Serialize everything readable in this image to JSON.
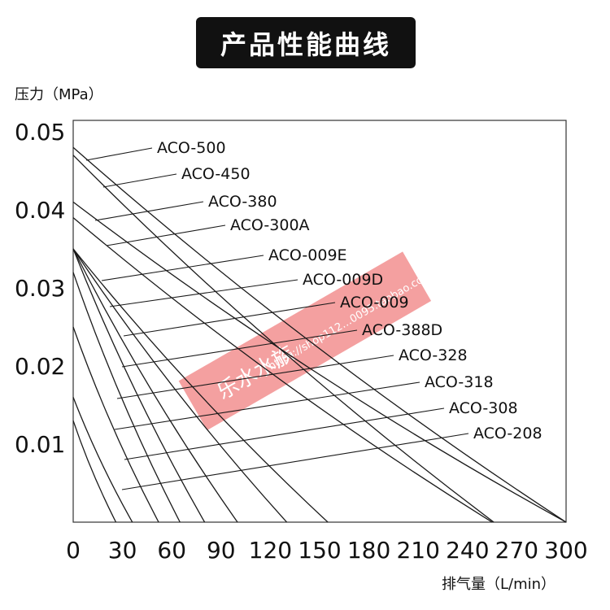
{
  "chart_data": {
    "type": "line",
    "title": "产品性能曲线",
    "ylabel": "压力（MPa）",
    "xlabel": "排气量（L/min）",
    "xlim": [
      0,
      300
    ],
    "ylim": [
      0,
      0.05
    ],
    "x_ticks": [
      "0",
      "30",
      "60",
      "90",
      "120",
      "150",
      "180",
      "210",
      "240",
      "270",
      "300"
    ],
    "y_ticks": [
      "0.01",
      "0.02",
      "0.03",
      "0.04",
      "0.05"
    ],
    "grid": false,
    "series": [
      {
        "name": "ACO-500",
        "points": [
          [
            0,
            0.048
          ],
          [
            300,
            0
          ]
        ]
      },
      {
        "name": "ACO-450",
        "points": [
          [
            0,
            0.047
          ],
          [
            256,
            0
          ]
        ]
      },
      {
        "name": "ACO-380",
        "points": [
          [
            0,
            0.041
          ],
          [
            300,
            0
          ]
        ]
      },
      {
        "name": "ACO-300A",
        "points": [
          [
            0,
            0.039
          ],
          [
            255,
            0
          ]
        ]
      },
      {
        "name": "ACO-009E",
        "points": [
          [
            0,
            0.035
          ],
          [
            155,
            0
          ]
        ]
      },
      {
        "name": "ACO-009D",
        "points": [
          [
            0,
            0.035
          ],
          [
            130,
            0
          ]
        ]
      },
      {
        "name": "ACO-009",
        "points": [
          [
            0,
            0.035
          ],
          [
            100,
            0
          ]
        ]
      },
      {
        "name": "ACO-388D",
        "points": [
          [
            0,
            0.035
          ],
          [
            80,
            0
          ]
        ]
      },
      {
        "name": "ACO-328",
        "points": [
          [
            0,
            0.032
          ],
          [
            65,
            0
          ]
        ]
      },
      {
        "name": "ACO-318",
        "points": [
          [
            0,
            0.025
          ],
          [
            52,
            0
          ]
        ]
      },
      {
        "name": "ACO-308",
        "points": [
          [
            0,
            0.016
          ],
          [
            36,
            0
          ]
        ]
      },
      {
        "name": "ACO-208",
        "points": [
          [
            0,
            0.013
          ],
          [
            26,
            0
          ]
        ]
      }
    ]
  },
  "watermark": {
    "shop": "乐水水族",
    "url": "https://shop112…0095.taobao.com",
    "color": "#f08080"
  }
}
